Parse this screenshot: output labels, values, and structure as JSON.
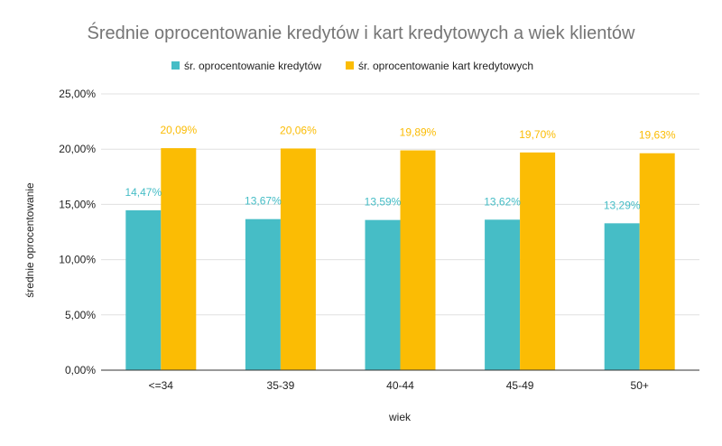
{
  "chart_data": {
    "type": "bar",
    "title": "Średnie oprocentowanie kredytów i kart kredytowych a wiek klientów",
    "xlabel": "wiek",
    "ylabel": "średnie oprocentowanie",
    "categories": [
      "<=34",
      "35-39",
      "40-44",
      "45-49",
      "50+"
    ],
    "ylim": [
      0,
      25
    ],
    "yticks": [
      0,
      5,
      10,
      15,
      20,
      25
    ],
    "ytick_labels": [
      "0,00%",
      "5,00%",
      "10,00%",
      "15,00%",
      "20,00%",
      "25,00%"
    ],
    "grid": true,
    "legend_position": "top",
    "series": [
      {
        "name": "śr. oprocentowanie kredytów",
        "color": "#46bdc6",
        "values": [
          14.47,
          13.67,
          13.59,
          13.62,
          13.29
        ],
        "labels": [
          "14,47%",
          "13,67%",
          "13,59%",
          "13,62%",
          "13,29%"
        ]
      },
      {
        "name": "śr. oprocentowanie kart kredytowych",
        "color": "#fbbc04",
        "values": [
          20.09,
          20.06,
          19.89,
          19.7,
          19.63
        ],
        "labels": [
          "20,09%",
          "20,06%",
          "19,89%",
          "19,70%",
          "19,63%"
        ]
      }
    ]
  }
}
